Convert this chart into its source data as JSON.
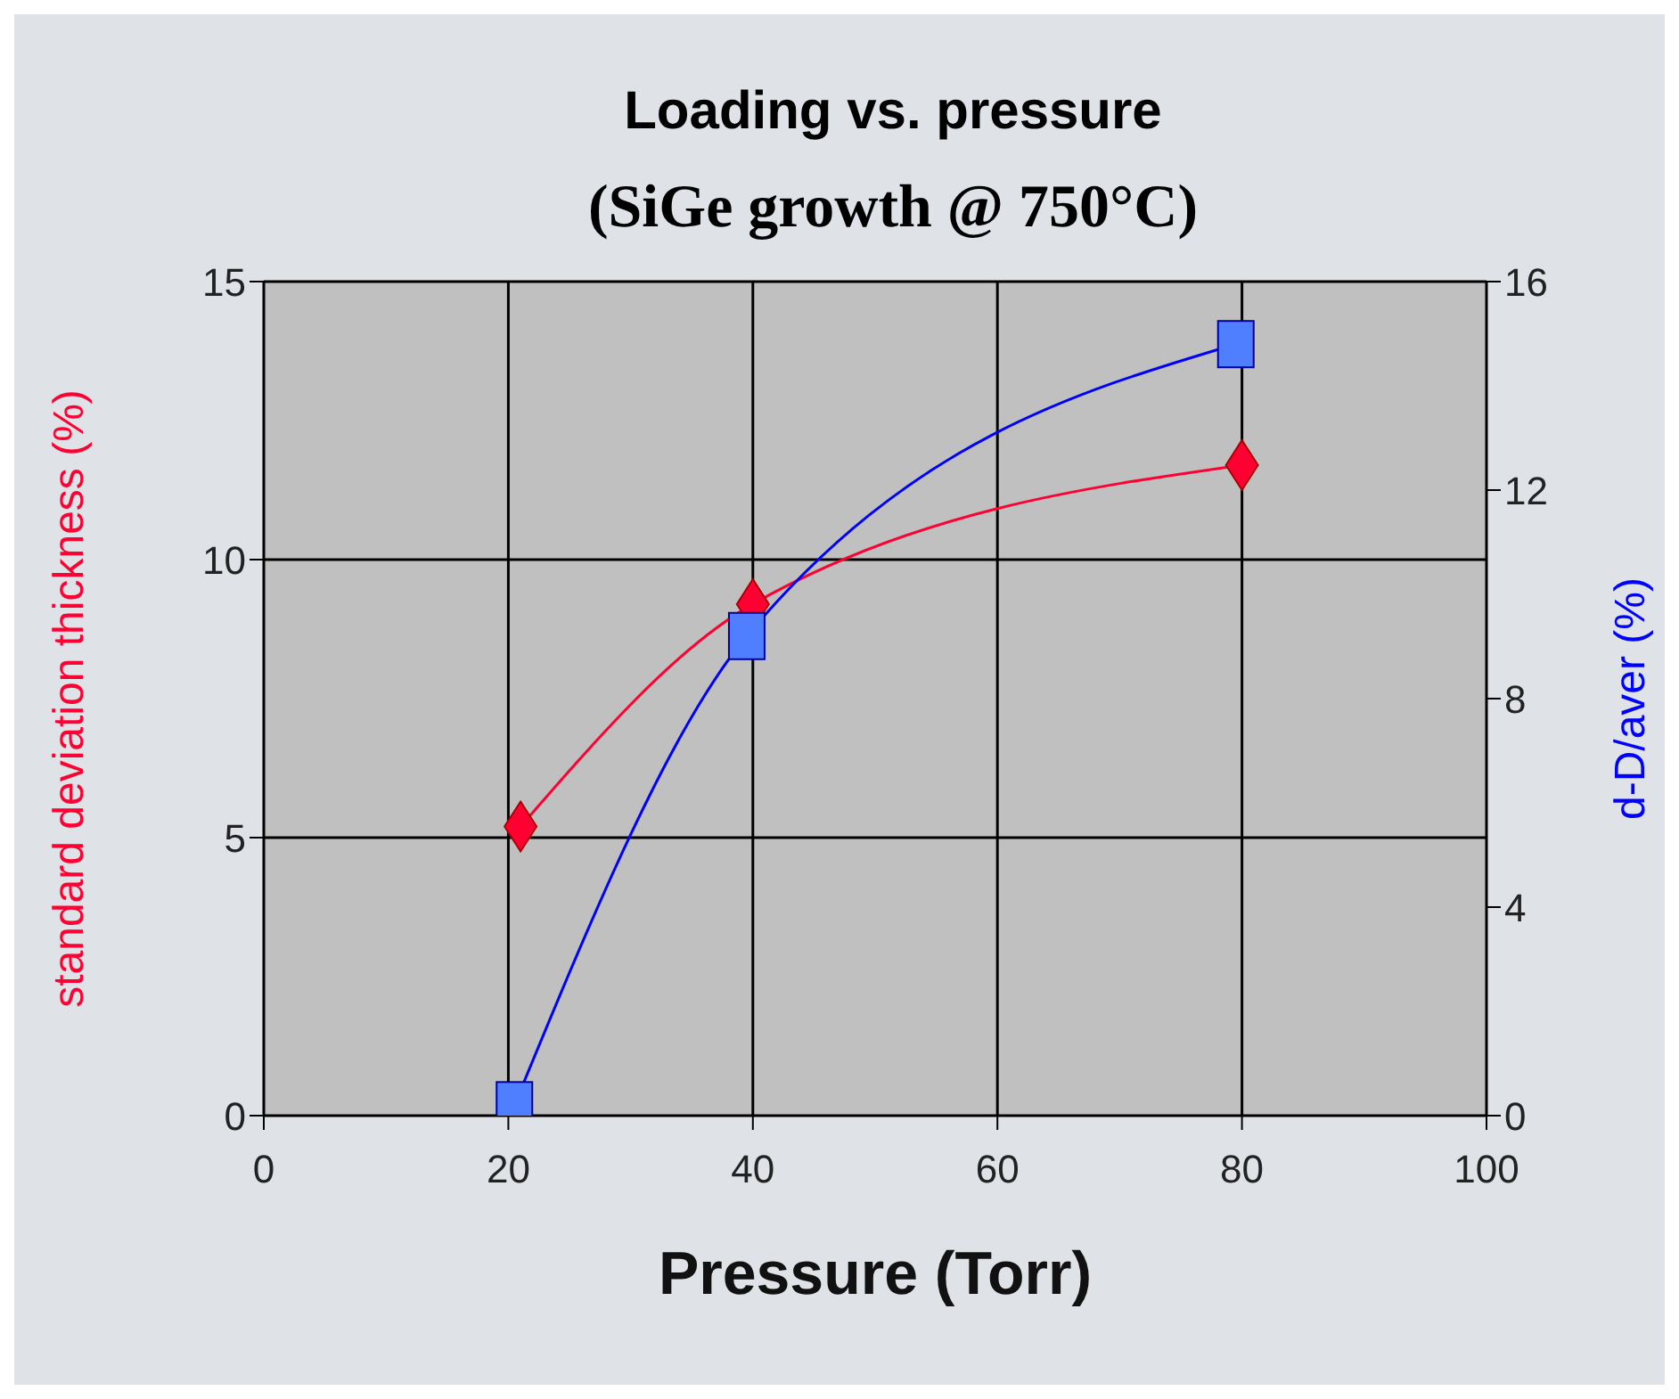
{
  "chart_data": {
    "type": "line",
    "title": "Loading vs. pressure",
    "subtitle": "(SiGe growth @ 750°C)",
    "xlabel": "Pressure (Torr)",
    "ylabel": "standard deviation thickness (%)",
    "y2label": "d-D/aver (%)",
    "series": [
      {
        "color": "#ff0033",
        "marker": "diamond",
        "x": [
          21,
          40,
          80
        ],
        "values": [
          5.2,
          9.2,
          11.7
        ]
      },
      {
        "color": "#0000ff",
        "marker": "square",
        "axis": "y2",
        "x": [
          20.5,
          39.5,
          79.5
        ],
        "values": [
          0.2,
          9.2,
          14.8
        ]
      }
    ],
    "xlim": [
      0,
      100
    ],
    "xticks": [
      0,
      20,
      40,
      60,
      80,
      100
    ],
    "ylim": [
      0,
      15
    ],
    "yticks": [
      0,
      5,
      10,
      15
    ],
    "y2lim": [
      0,
      16
    ],
    "y2ticks": [
      0,
      4,
      8,
      12,
      16
    ],
    "grid": true
  }
}
